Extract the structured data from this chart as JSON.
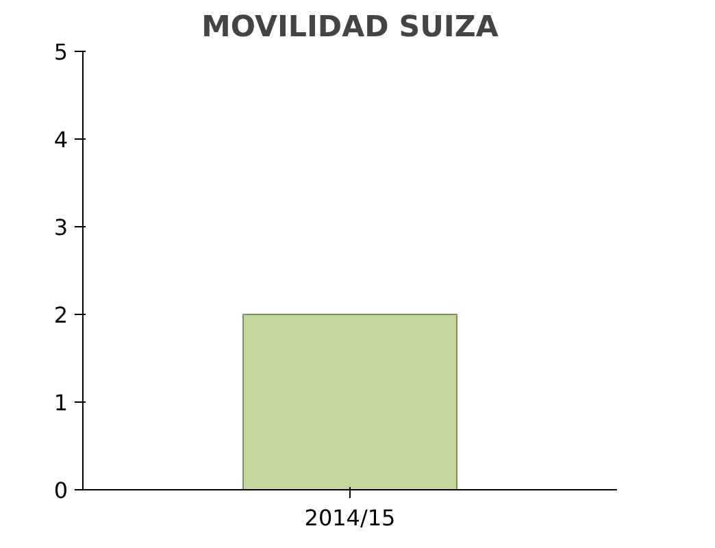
{
  "chart_data": {
    "type": "bar",
    "title": "MOVILIDAD SUIZA",
    "categories": [
      "2014/15"
    ],
    "values": [
      2
    ],
    "color": "#c4d79b",
    "ylim": [
      0,
      5
    ],
    "yticks": [
      0,
      1,
      2,
      3,
      4,
      5
    ],
    "grid": false
  }
}
